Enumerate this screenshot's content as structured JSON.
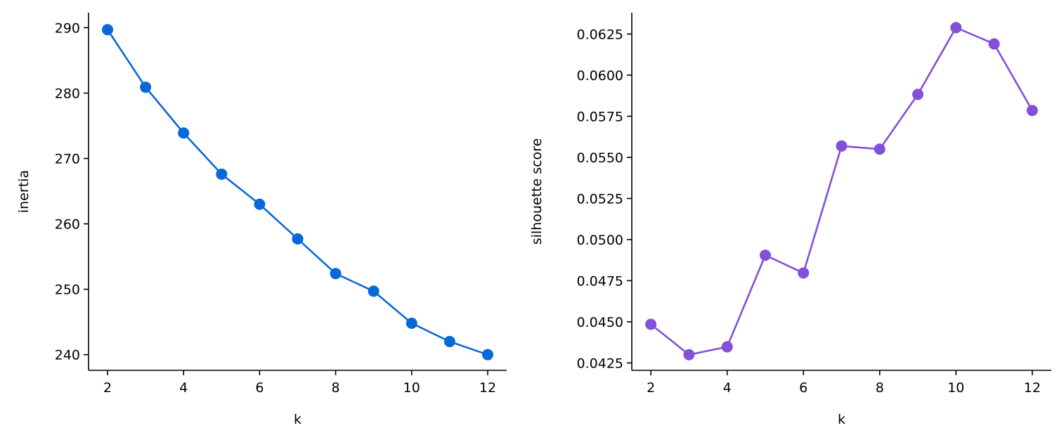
{
  "chart_data": [
    {
      "type": "line",
      "xlabel": "k",
      "ylabel": "inertia",
      "x": [
        2,
        3,
        4,
        5,
        6,
        7,
        8,
        9,
        10,
        11,
        12
      ],
      "series": [
        {
          "values": [
            289.7,
            280.9,
            273.9,
            267.6,
            263.0,
            257.7,
            252.4,
            249.7,
            244.8,
            242.0,
            240.0
          ],
          "color": "#0868d8"
        }
      ],
      "xticks": [
        "2",
        "4",
        "6",
        "8",
        "10",
        "12"
      ],
      "yticks": [
        "240",
        "250",
        "260",
        "270",
        "280",
        "290"
      ],
      "xlim": [
        1.5,
        12.5
      ],
      "ylim": [
        237.6,
        292.3
      ],
      "grid": false,
      "marker": "circle"
    },
    {
      "type": "line",
      "xlabel": "k",
      "ylabel": "silhouette score",
      "x": [
        2,
        3,
        4,
        5,
        6,
        7,
        8,
        9,
        10,
        11,
        12
      ],
      "series": [
        {
          "values": [
            0.04485,
            0.043,
            0.04348,
            0.04905,
            0.04797,
            0.05569,
            0.0555,
            0.05883,
            0.06289,
            0.0619,
            0.05785
          ],
          "color": "#8450d8"
        }
      ],
      "xticks": [
        "2",
        "4",
        "6",
        "8",
        "10",
        "12"
      ],
      "yticks": [
        "0.0425",
        "0.0450",
        "0.0475",
        "0.0500",
        "0.0525",
        "0.0550",
        "0.0575",
        "0.0600",
        "0.0625"
      ],
      "xlim": [
        1.5,
        12.5
      ],
      "ylim": [
        0.04205,
        0.0638
      ],
      "grid": false,
      "marker": "circle"
    }
  ]
}
